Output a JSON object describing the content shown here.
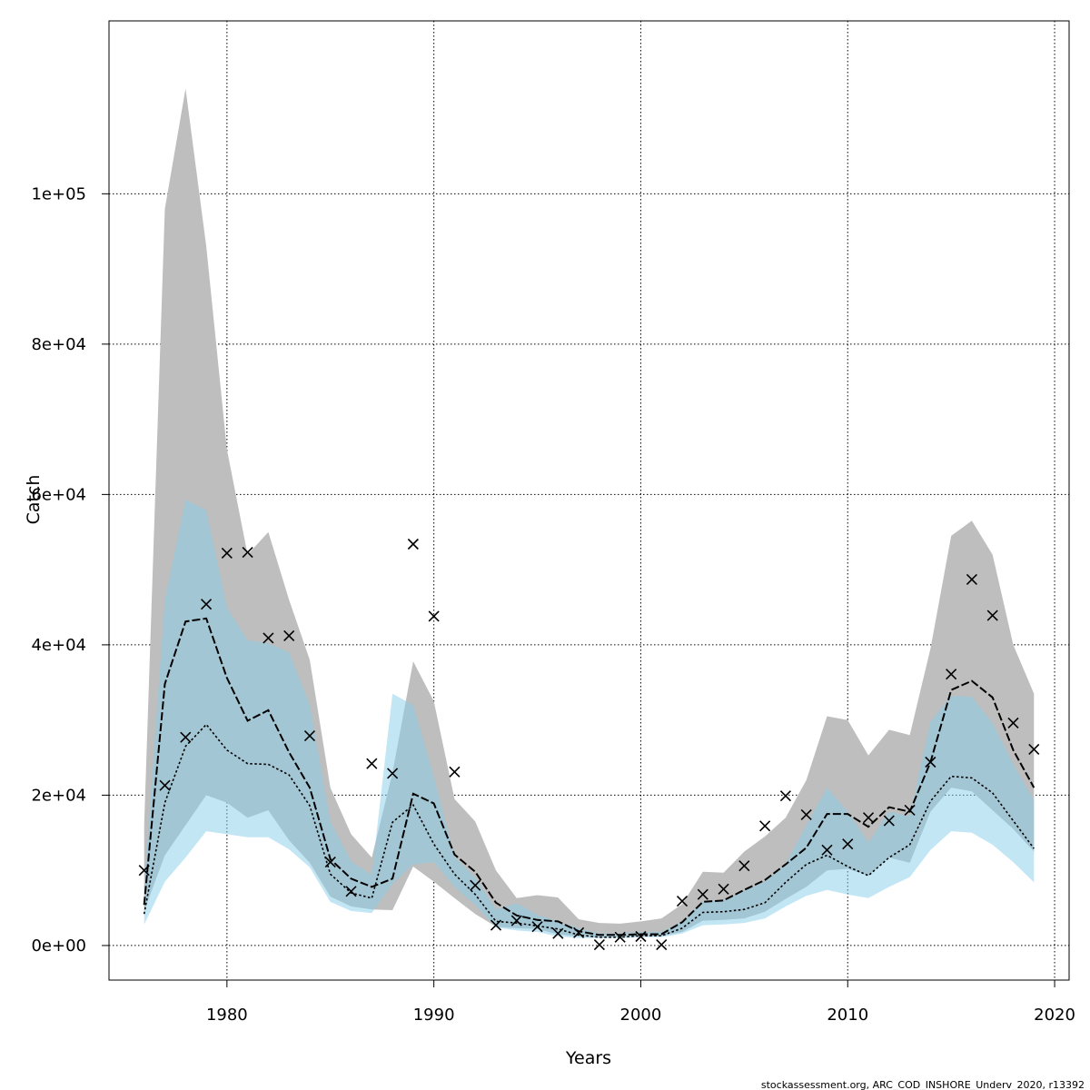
{
  "chart_data": {
    "type": "line",
    "xlabel": "Years",
    "ylabel": "Catch",
    "xlim": [
      1974.3,
      2020.7
    ],
    "ylim": [
      -4600,
      123000
    ],
    "x_ticks": [
      1980,
      1990,
      2000,
      2010,
      2020
    ],
    "y_ticks": [
      0,
      20000,
      40000,
      60000,
      80000,
      100000
    ],
    "y_tick_labels": [
      "0e+00",
      "2e+04",
      "4e+04",
      "6e+04",
      "8e+04",
      "1e+05"
    ],
    "grid": true,
    "credit": "stockassessment.org, ARC_COD_INSHORE_Underv_2020, r13392",
    "colors": {
      "outer_band": "#bebebe",
      "inner_band": "#87ceeb",
      "inner_band_opacity": 0.5,
      "line": "#000000",
      "grid": "#000000"
    },
    "years": [
      1976,
      1977,
      1978,
      1979,
      1980,
      1981,
      1982,
      1983,
      1984,
      1985,
      1986,
      1987,
      1988,
      1989,
      1990,
      1991,
      1992,
      1993,
      1994,
      1995,
      1996,
      1997,
      1998,
      1999,
      2000,
      2001,
      2002,
      2003,
      2004,
      2005,
      2006,
      2007,
      2008,
      2009,
      2010,
      2011,
      2012,
      2013,
      2014,
      2015,
      2016,
      2017,
      2018,
      2019
    ],
    "series": [
      {
        "kind": "band",
        "lower": [
          4600,
          12000,
          16000,
          20000,
          19000,
          17000,
          18000,
          14000,
          11000,
          6500,
          5200,
          4800,
          4700,
          10500,
          8500,
          6300,
          4200,
          2500,
          2300,
          2200,
          1500,
          1200,
          1050,
          1100,
          1200,
          1250,
          1800,
          3300,
          3400,
          3600,
          4500,
          6200,
          7800,
          10000,
          10200,
          9300,
          11700,
          11000,
          17800,
          21000,
          20500,
          18000,
          15500,
          12500
        ],
        "upper": [
          16000,
          98000,
          114000,
          93000,
          66000,
          52000,
          55000,
          46000,
          38000,
          21000,
          14800,
          11700,
          23000,
          37800,
          32500,
          19500,
          16500,
          10000,
          6300,
          6700,
          6400,
          3500,
          3000,
          2900,
          3200,
          3600,
          5500,
          9800,
          9700,
          12500,
          14500,
          17000,
          22000,
          30500,
          30000,
          25300,
          28700,
          28000,
          39500,
          54500,
          56500,
          52000,
          40000,
          33500
        ]
      },
      {
        "kind": "band",
        "lower": [
          2800,
          8500,
          11700,
          15200,
          14800,
          14400,
          14400,
          12800,
          10400,
          5800,
          4600,
          4300,
          8200,
          10800,
          11100,
          7800,
          5400,
          2400,
          2000,
          1800,
          1200,
          1000,
          1000,
          1000,
          1100,
          1100,
          1600,
          2700,
          2800,
          3000,
          3600,
          5200,
          6600,
          7400,
          6800,
          6300,
          7800,
          9100,
          12700,
          15200,
          15000,
          13400,
          11100,
          8400
        ],
        "upper": [
          7800,
          46000,
          59300,
          57900,
          45000,
          40600,
          40200,
          39000,
          32000,
          16500,
          11200,
          9400,
          33500,
          32000,
          22500,
          11800,
          9000,
          4800,
          5600,
          4100,
          3200,
          2300,
          1600,
          1600,
          1800,
          1800,
          3200,
          5800,
          6000,
          7300,
          8500,
          10900,
          16000,
          21000,
          17800,
          13700,
          17800,
          17200,
          29800,
          33200,
          33100,
          29600,
          24100,
          19300
        ]
      },
      {
        "kind": "line",
        "style": "solid",
        "values": [
          5400,
          34800,
          43100,
          43500,
          35600,
          29900,
          31300,
          25700,
          21000,
          11500,
          8900,
          7800,
          8900,
          20200,
          18900,
          12100,
          9800,
          5700,
          4000,
          3400,
          3200,
          1900,
          1400,
          1400,
          1500,
          1500,
          3100,
          5800,
          6000,
          7400,
          8700,
          10800,
          13000,
          17500,
          17500,
          15800,
          18400,
          17800,
          24400,
          34000,
          35200,
          33000,
          26000,
          21000
        ]
      },
      {
        "kind": "line",
        "style": "dotted",
        "values": [
          4200,
          19000,
          26500,
          29400,
          26000,
          24200,
          24100,
          22700,
          18600,
          9500,
          7000,
          6300,
          16400,
          18700,
          13500,
          9500,
          6800,
          3200,
          3000,
          2600,
          2200,
          1400,
          1100,
          1100,
          1300,
          1300,
          2300,
          4400,
          4500,
          4800,
          5700,
          8400,
          10800,
          12000,
          10500,
          9300,
          11700,
          13400,
          19200,
          22500,
          22300,
          20300,
          16600,
          12900
        ]
      }
    ],
    "observed": {
      "marker": "x",
      "values": [
        10000,
        21300,
        27700,
        45400,
        52200,
        52300,
        40900,
        41200,
        27900,
        11100,
        7200,
        24200,
        22900,
        53400,
        43800,
        23100,
        8000,
        2700,
        3300,
        2500,
        1600,
        1700,
        100,
        1100,
        1200,
        100,
        5900,
        6800,
        7500,
        10600,
        15900,
        19900,
        17400,
        12700,
        13500,
        17000,
        16600,
        18000,
        24400,
        36100,
        48700,
        43900,
        29600,
        26100
      ]
    }
  }
}
